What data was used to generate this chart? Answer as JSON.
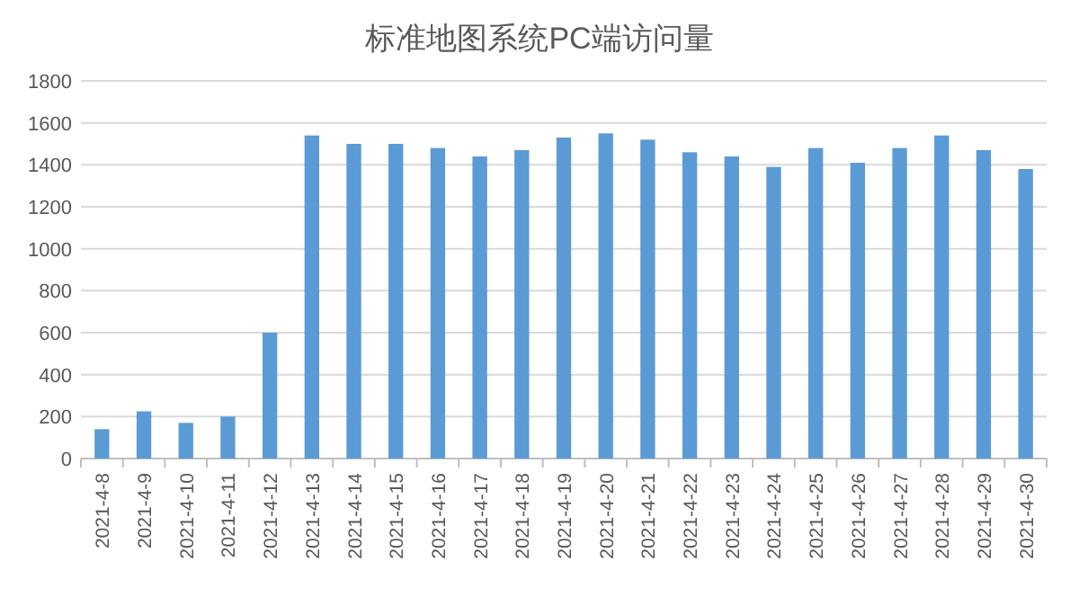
{
  "chart_data": {
    "type": "bar",
    "title": "标准地图系统PC端访问量",
    "categories": [
      "2021-4-8",
      "2021-4-9",
      "2021-4-10",
      "2021-4-11",
      "2021-4-12",
      "2021-4-13",
      "2021-4-14",
      "2021-4-15",
      "2021-4-16",
      "2021-4-17",
      "2021-4-18",
      "2021-4-19",
      "2021-4-20",
      "2021-4-21",
      "2021-4-22",
      "2021-4-23",
      "2021-4-24",
      "2021-4-25",
      "2021-4-26",
      "2021-4-27",
      "2021-4-28",
      "2021-4-29",
      "2021-4-30"
    ],
    "values": [
      140,
      225,
      170,
      200,
      600,
      1540,
      1500,
      1500,
      1480,
      1440,
      1470,
      1530,
      1550,
      1520,
      1460,
      1440,
      1390,
      1480,
      1410,
      1480,
      1540,
      1470,
      1380
    ],
    "color": "#5b9bd5",
    "ylim": [
      0,
      1800
    ],
    "yticks": [
      0,
      200,
      400,
      600,
      800,
      1000,
      1200,
      1400,
      1600,
      1800
    ],
    "grid": "y"
  }
}
